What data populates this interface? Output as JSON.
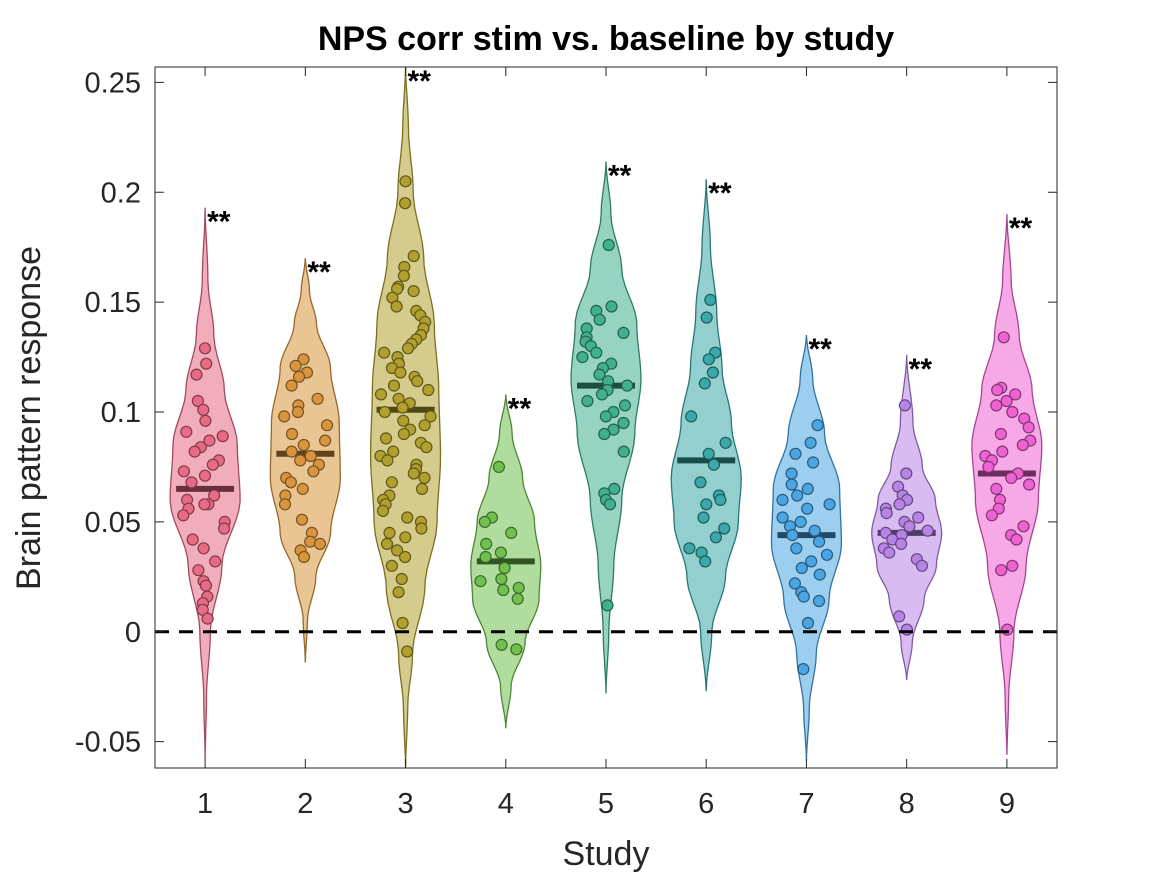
{
  "chart_data": {
    "type": "violin",
    "title": "NPS corr stim vs. baseline by study",
    "xlabel": "Study",
    "ylabel": "Brain pattern response",
    "ylim": [
      -0.062,
      0.257
    ],
    "xlim": [
      0.5,
      9.5
    ],
    "y_ticks": [
      -0.05,
      0,
      0.05,
      0.1,
      0.15,
      0.2,
      0.25
    ],
    "y_tick_labels": [
      "-0.05",
      "0",
      "0.05",
      "0.1",
      "0.15",
      "0.2",
      "0.25"
    ],
    "x_ticks": [
      1,
      2,
      3,
      4,
      5,
      6,
      7,
      8,
      9
    ],
    "x_tick_labels": [
      "1",
      "2",
      "3",
      "4",
      "5",
      "6",
      "7",
      "8",
      "9"
    ],
    "reference_line": {
      "y": 0,
      "style": "dashed",
      "color": "#000000"
    },
    "grid": false,
    "legend": "none",
    "series": [
      {
        "study": 1,
        "color": "#e86a86",
        "median": 0.065,
        "significance": "**",
        "violin": {
          "min": -0.058,
          "max": 0.193,
          "profile": [
            [
              -0.058,
              0.002
            ],
            [
              -0.03,
              0.04
            ],
            [
              0.0,
              0.15
            ],
            [
              0.03,
              0.48
            ],
            [
              0.06,
              1.0
            ],
            [
              0.085,
              0.92
            ],
            [
              0.11,
              0.55
            ],
            [
              0.135,
              0.25
            ],
            [
              0.16,
              0.08
            ],
            [
              0.193,
              0.002
            ]
          ]
        },
        "points": [
          0.129,
          0.122,
          0.117,
          0.105,
          0.101,
          0.096,
          0.091,
          0.089,
          0.087,
          0.084,
          0.082,
          0.078,
          0.076,
          0.073,
          0.071,
          0.068,
          0.062,
          0.06,
          0.058,
          0.058,
          0.056,
          0.053,
          0.05,
          0.047,
          0.042,
          0.038,
          0.032,
          0.028,
          0.023,
          0.021,
          0.016,
          0.013,
          0.01,
          0.006
        ]
      },
      {
        "study": 2,
        "color": "#d8953d",
        "median": 0.081,
        "significance": "**",
        "violin": {
          "min": -0.014,
          "max": 0.17,
          "profile": [
            [
              -0.014,
              0.002
            ],
            [
              0.005,
              0.06
            ],
            [
              0.025,
              0.3
            ],
            [
              0.045,
              0.72
            ],
            [
              0.07,
              1.0
            ],
            [
              0.095,
              0.97
            ],
            [
              0.12,
              0.72
            ],
            [
              0.14,
              0.32
            ],
            [
              0.155,
              0.12
            ],
            [
              0.17,
              0.002
            ]
          ]
        },
        "points": [
          0.124,
          0.121,
          0.118,
          0.116,
          0.112,
          0.106,
          0.103,
          0.1,
          0.098,
          0.094,
          0.09,
          0.087,
          0.085,
          0.082,
          0.08,
          0.078,
          0.076,
          0.073,
          0.07,
          0.068,
          0.065,
          0.062,
          0.058,
          0.051,
          0.045,
          0.041,
          0.04,
          0.037,
          0.034
        ]
      },
      {
        "study": 3,
        "color": "#b0a02e",
        "median": 0.101,
        "significance": "**",
        "violin": {
          "min": -0.062,
          "max": 0.257,
          "profile": [
            [
              -0.062,
              0.002
            ],
            [
              -0.035,
              0.06
            ],
            [
              -0.01,
              0.2
            ],
            [
              0.02,
              0.55
            ],
            [
              0.05,
              0.9
            ],
            [
              0.08,
              1.0
            ],
            [
              0.11,
              0.95
            ],
            [
              0.14,
              0.82
            ],
            [
              0.17,
              0.52
            ],
            [
              0.2,
              0.22
            ],
            [
              0.23,
              0.08
            ],
            [
              0.257,
              0.002
            ]
          ]
        },
        "points": [
          0.205,
          0.195,
          0.171,
          0.166,
          0.162,
          0.157,
          0.156,
          0.155,
          0.152,
          0.148,
          0.146,
          0.144,
          0.141,
          0.138,
          0.135,
          0.133,
          0.131,
          0.129,
          0.127,
          0.125,
          0.122,
          0.12,
          0.118,
          0.116,
          0.114,
          0.112,
          0.11,
          0.108,
          0.106,
          0.104,
          0.102,
          0.1,
          0.098,
          0.096,
          0.094,
          0.092,
          0.09,
          0.088,
          0.086,
          0.084,
          0.082,
          0.08,
          0.078,
          0.076,
          0.074,
          0.072,
          0.07,
          0.068,
          0.065,
          0.062,
          0.06,
          0.058,
          0.055,
          0.052,
          0.05,
          0.047,
          0.045,
          0.043,
          0.04,
          0.037,
          0.034,
          0.03,
          0.024,
          0.018,
          0.004,
          -0.009
        ]
      },
      {
        "study": 4,
        "color": "#6fc04d",
        "median": 0.032,
        "significance": "**",
        "violin": {
          "min": -0.044,
          "max": 0.108,
          "profile": [
            [
              -0.044,
              0.002
            ],
            [
              -0.025,
              0.15
            ],
            [
              -0.005,
              0.55
            ],
            [
              0.015,
              0.95
            ],
            [
              0.03,
              1.0
            ],
            [
              0.05,
              0.82
            ],
            [
              0.07,
              0.48
            ],
            [
              0.09,
              0.18
            ],
            [
              0.108,
              0.002
            ]
          ]
        },
        "points": [
          0.075,
          0.052,
          0.05,
          0.045,
          0.04,
          0.036,
          0.034,
          0.029,
          0.024,
          0.023,
          0.02,
          0.019,
          0.015,
          -0.006,
          -0.008
        ]
      },
      {
        "study": 5,
        "color": "#40b08e",
        "median": 0.112,
        "significance": "**",
        "violin": {
          "min": -0.028,
          "max": 0.214,
          "profile": [
            [
              -0.028,
              0.002
            ],
            [
              0.0,
              0.08
            ],
            [
              0.03,
              0.22
            ],
            [
              0.06,
              0.45
            ],
            [
              0.09,
              0.82
            ],
            [
              0.115,
              1.0
            ],
            [
              0.14,
              0.88
            ],
            [
              0.165,
              0.45
            ],
            [
              0.19,
              0.14
            ],
            [
              0.214,
              0.002
            ]
          ]
        },
        "points": [
          0.176,
          0.148,
          0.146,
          0.142,
          0.138,
          0.136,
          0.134,
          0.132,
          0.13,
          0.127,
          0.125,
          0.122,
          0.12,
          0.117,
          0.114,
          0.112,
          0.11,
          0.108,
          0.105,
          0.103,
          0.1,
          0.098,
          0.095,
          0.092,
          0.09,
          0.082,
          0.065,
          0.063,
          0.06,
          0.058,
          0.012
        ]
      },
      {
        "study": 6,
        "color": "#3aa8a8",
        "median": 0.078,
        "significance": "**",
        "violin": {
          "min": -0.027,
          "max": 0.206,
          "profile": [
            [
              -0.027,
              0.002
            ],
            [
              0.0,
              0.16
            ],
            [
              0.025,
              0.55
            ],
            [
              0.05,
              0.92
            ],
            [
              0.07,
              1.0
            ],
            [
              0.095,
              0.72
            ],
            [
              0.12,
              0.45
            ],
            [
              0.145,
              0.3
            ],
            [
              0.175,
              0.12
            ],
            [
              0.206,
              0.002
            ]
          ]
        },
        "points": [
          0.151,
          0.143,
          0.127,
          0.124,
          0.118,
          0.113,
          0.098,
          0.086,
          0.081,
          0.076,
          0.068,
          0.062,
          0.06,
          0.058,
          0.052,
          0.047,
          0.043,
          0.038,
          0.036,
          0.032
        ]
      },
      {
        "study": 7,
        "color": "#4aa5e2",
        "median": 0.044,
        "significance": "**",
        "violin": {
          "min": -0.059,
          "max": 0.135,
          "profile": [
            [
              -0.059,
              0.002
            ],
            [
              -0.035,
              0.08
            ],
            [
              -0.01,
              0.28
            ],
            [
              0.015,
              0.65
            ],
            [
              0.04,
              1.0
            ],
            [
              0.065,
              0.95
            ],
            [
              0.09,
              0.52
            ],
            [
              0.115,
              0.18
            ],
            [
              0.135,
              0.002
            ]
          ]
        },
        "points": [
          0.094,
          0.086,
          0.081,
          0.077,
          0.072,
          0.067,
          0.065,
          0.062,
          0.06,
          0.058,
          0.056,
          0.052,
          0.05,
          0.048,
          0.046,
          0.044,
          0.041,
          0.038,
          0.035,
          0.032,
          0.029,
          0.026,
          0.022,
          0.018,
          0.016,
          0.014,
          0.004,
          -0.017
        ]
      },
      {
        "study": 8,
        "color": "#b684e6",
        "median": 0.045,
        "significance": "**",
        "violin": {
          "min": -0.022,
          "max": 0.126,
          "profile": [
            [
              -0.022,
              0.002
            ],
            [
              -0.005,
              0.16
            ],
            [
              0.015,
              0.5
            ],
            [
              0.03,
              0.85
            ],
            [
              0.045,
              1.0
            ],
            [
              0.06,
              0.82
            ],
            [
              0.075,
              0.45
            ],
            [
              0.095,
              0.18
            ],
            [
              0.126,
              0.002
            ]
          ]
        },
        "points": [
          0.103,
          0.072,
          0.066,
          0.062,
          0.06,
          0.058,
          0.056,
          0.054,
          0.052,
          0.05,
          0.048,
          0.046,
          0.045,
          0.044,
          0.042,
          0.04,
          0.038,
          0.036,
          0.033,
          0.03,
          0.007,
          0.001
        ]
      },
      {
        "study": 9,
        "color": "#ee62d2",
        "median": 0.072,
        "significance": "**",
        "violin": {
          "min": -0.056,
          "max": 0.19,
          "profile": [
            [
              -0.056,
              0.002
            ],
            [
              -0.03,
              0.05
            ],
            [
              0.0,
              0.2
            ],
            [
              0.03,
              0.55
            ],
            [
              0.06,
              0.9
            ],
            [
              0.085,
              1.0
            ],
            [
              0.11,
              0.72
            ],
            [
              0.135,
              0.35
            ],
            [
              0.16,
              0.12
            ],
            [
              0.19,
              0.002
            ]
          ]
        },
        "points": [
          0.134,
          0.111,
          0.11,
          0.108,
          0.105,
          0.103,
          0.1,
          0.097,
          0.093,
          0.09,
          0.087,
          0.085,
          0.082,
          0.08,
          0.078,
          0.075,
          0.072,
          0.07,
          0.067,
          0.065,
          0.06,
          0.056,
          0.053,
          0.048,
          0.044,
          0.042,
          0.03,
          0.028,
          0.001
        ]
      }
    ]
  }
}
